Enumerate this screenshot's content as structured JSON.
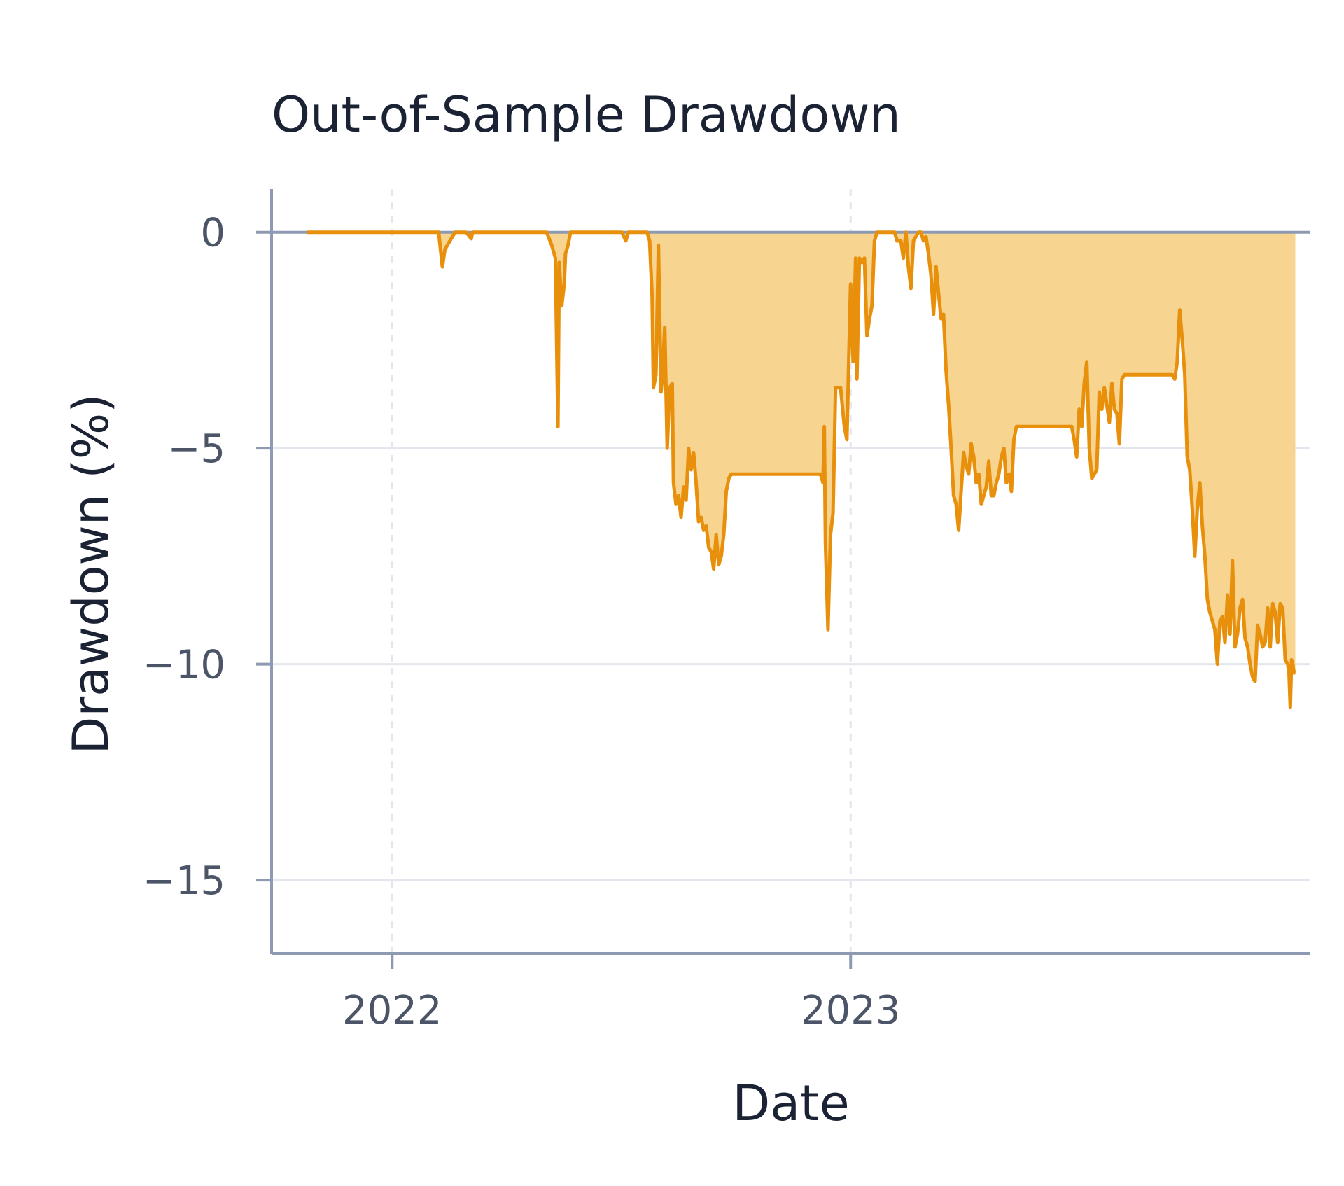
{
  "chart_data": {
    "type": "area",
    "title": "Out-of-Sample Drawdown",
    "xlabel": "Date",
    "ylabel": "Drawdown (%)",
    "xlim": [
      "2021-09-27",
      "2024-01-02"
    ],
    "ylim": [
      -16.7,
      1.0
    ],
    "x_ticks": [
      {
        "date": "2022-01-01",
        "label": "2022"
      },
      {
        "date": "2023-01-01",
        "label": "2023"
      }
    ],
    "y_ticks": [
      {
        "value": 0,
        "label": "0"
      },
      {
        "value": -5,
        "label": "−5"
      },
      {
        "value": -10,
        "label": "−10"
      },
      {
        "value": -15,
        "label": "−15"
      }
    ],
    "grid": {
      "x": "dashed",
      "y": "solid"
    },
    "colors": {
      "line": "#e8900c",
      "fill": "#f7d48f",
      "axis": "#8e9ab2",
      "grid": "#e3e6ec",
      "zero_line": "#8e9ab2"
    },
    "series": [
      {
        "x": [
          "2021-10-25",
          "2022-02-07",
          "2022-02-10",
          "2022-02-12",
          "2022-02-16",
          "2022-02-20",
          "2022-02-22",
          "2022-03-01",
          "2022-03-05",
          "2022-03-06",
          "2022-05-04",
          "2022-05-08",
          "2022-05-11",
          "2022-05-13",
          "2022-05-14",
          "2022-05-16",
          "2022-05-18",
          "2022-05-19",
          "2022-05-21",
          "2022-05-23",
          "2022-05-24",
          "2022-07-03",
          "2022-07-06",
          "2022-07-08",
          "2022-07-10",
          "2022-07-23",
          "2022-07-25",
          "2022-07-27",
          "2022-07-28",
          "2022-07-30",
          "2022-08-01",
          "2022-08-03",
          "2022-08-04",
          "2022-08-06",
          "2022-08-08",
          "2022-08-10",
          "2022-08-12",
          "2022-08-13",
          "2022-08-15",
          "2022-08-17",
          "2022-08-19",
          "2022-08-21",
          "2022-08-23",
          "2022-08-25",
          "2022-08-27",
          "2022-08-29",
          "2022-08-31",
          "2022-09-02",
          "2022-09-04",
          "2022-09-06",
          "2022-09-08",
          "2022-09-10",
          "2022-09-12",
          "2022-09-14",
          "2022-09-16",
          "2022-09-18",
          "2022-09-20",
          "2022-09-22",
          "2022-09-24",
          "2022-09-26",
          "2022-09-28",
          "2022-09-30",
          "2022-10-03",
          "2022-10-06",
          "2022-10-10",
          "2022-12-08",
          "2022-12-10",
          "2022-12-11",
          "2022-12-12",
          "2022-12-14",
          "2022-12-16",
          "2022-12-18",
          "2022-12-20",
          "2022-12-21",
          "2022-12-24",
          "2022-12-27",
          "2022-12-29",
          "2023-01-01",
          "2023-01-03",
          "2023-01-05",
          "2023-01-06",
          "2023-01-08",
          "2023-01-10",
          "2023-01-12",
          "2023-01-14",
          "2023-01-16",
          "2023-01-18",
          "2023-01-20",
          "2023-01-22",
          "2023-01-24",
          "2023-01-26",
          "2023-01-28",
          "2023-02-05",
          "2023-02-07",
          "2023-02-10",
          "2023-02-12",
          "2023-02-14",
          "2023-02-16",
          "2023-02-18",
          "2023-02-20",
          "2023-02-24",
          "2023-02-26",
          "2023-02-28",
          "2023-03-02",
          "2023-03-04",
          "2023-03-06",
          "2023-03-08",
          "2023-03-10",
          "2023-03-12",
          "2023-03-14",
          "2023-03-16",
          "2023-03-18",
          "2023-03-20",
          "2023-03-22",
          "2023-03-24",
          "2023-03-26",
          "2023-03-28",
          "2023-03-30",
          "2023-04-01",
          "2023-04-03",
          "2023-04-05",
          "2023-04-07",
          "2023-04-09",
          "2023-04-11",
          "2023-04-13",
          "2023-04-15",
          "2023-04-17",
          "2023-04-19",
          "2023-04-21",
          "2023-04-23",
          "2023-04-25",
          "2023-04-27",
          "2023-04-29",
          "2023-05-01",
          "2023-05-03",
          "2023-05-05",
          "2023-05-07",
          "2023-05-09",
          "2023-05-11",
          "2023-05-13",
          "2023-05-15",
          "2023-05-17",
          "2023-05-19",
          "2023-05-21",
          "2023-05-23",
          "2023-05-25",
          "2023-05-27",
          "2023-05-29",
          "2023-05-31",
          "2023-06-02",
          "2023-06-04",
          "2023-06-06",
          "2023-06-08",
          "2023-06-10",
          "2023-06-12",
          "2023-06-14",
          "2023-06-16",
          "2023-06-18",
          "2023-06-20",
          "2023-06-22",
          "2023-06-24",
          "2023-06-26",
          "2023-06-28",
          "2023-06-30",
          "2023-07-02",
          "2023-07-04",
          "2023-07-06",
          "2023-07-08",
          "2023-07-10",
          "2023-07-12",
          "2023-07-14",
          "2023-07-16",
          "2023-07-18",
          "2023-07-20",
          "2023-07-22",
          "2023-07-24",
          "2023-07-26",
          "2023-07-28",
          "2023-07-30",
          "2023-08-01",
          "2023-08-03",
          "2023-08-05",
          "2023-08-07",
          "2023-08-09",
          "2023-08-11",
          "2023-08-13",
          "2023-08-15",
          "2023-08-17",
          "2023-08-19",
          "2023-08-21",
          "2023-08-23",
          "2023-08-25",
          "2023-08-27",
          "2023-08-29",
          "2023-08-31",
          "2023-09-02",
          "2023-09-04",
          "2023-09-06",
          "2023-09-08",
          "2023-09-10",
          "2023-09-12",
          "2023-09-14",
          "2023-09-16",
          "2023-09-18",
          "2023-09-20",
          "2023-09-22",
          "2023-09-24",
          "2023-09-26",
          "2023-09-28",
          "2023-09-30",
          "2023-10-02",
          "2023-10-04",
          "2023-10-06",
          "2023-10-08",
          "2023-10-10",
          "2023-10-12",
          "2023-10-14",
          "2023-10-16",
          "2023-10-18",
          "2023-10-20",
          "2023-10-22",
          "2023-10-24",
          "2023-10-26",
          "2023-10-28",
          "2023-10-30",
          "2023-11-01",
          "2023-11-03",
          "2023-11-05",
          "2023-11-07",
          "2023-11-09",
          "2023-11-11",
          "2023-11-13",
          "2023-11-15",
          "2023-11-17",
          "2023-11-19",
          "2023-11-21",
          "2023-11-23",
          "2023-11-25",
          "2023-11-27",
          "2023-11-29",
          "2023-12-01",
          "2023-12-03",
          "2023-12-05",
          "2023-12-07",
          "2023-12-09",
          "2023-12-11",
          "2023-12-13",
          "2023-12-15",
          "2023-12-16",
          "2023-12-17",
          "2023-12-18",
          "2023-12-19",
          "2023-12-20",
          "2023-12-21"
        ],
        "y": [
          0,
          0,
          -0.8,
          -0.4,
          -0.2,
          0,
          0,
          0,
          -0.15,
          0,
          0,
          -0.3,
          -0.6,
          -4.5,
          -0.7,
          -1.7,
          -1.2,
          -0.5,
          -0.3,
          0,
          0,
          0,
          -0.2,
          0,
          0,
          0,
          -0.2,
          -1.5,
          -3.6,
          -3.3,
          -0.3,
          -3.7,
          -3.4,
          -2.2,
          -5.0,
          -3.6,
          -3.5,
          -5.8,
          -6.3,
          -6.1,
          -6.6,
          -5.9,
          -6.2,
          -5.0,
          -5.5,
          -5.1,
          -5.8,
          -6.7,
          -6.6,
          -6.9,
          -6.8,
          -7.3,
          -7.4,
          -7.8,
          -7.0,
          -7.7,
          -7.5,
          -7.0,
          -6.0,
          -5.7,
          -5.6,
          -5.6,
          -5.6,
          -5.6,
          -5.6,
          -5.6,
          -5.8,
          -4.5,
          -7.2,
          -9.2,
          -7.0,
          -6.5,
          -3.6,
          -3.6,
          -3.6,
          -4.5,
          -4.8,
          -1.2,
          -3.0,
          -0.6,
          -3.4,
          -0.6,
          -0.7,
          -0.6,
          -2.4,
          -2.0,
          -1.7,
          -0.2,
          0,
          0,
          0,
          0,
          0,
          -0.2,
          -0.2,
          -0.6,
          0,
          -0.8,
          -1.3,
          -0.2,
          0,
          0,
          -0.2,
          -0.1,
          -0.5,
          -1.0,
          -1.9,
          -0.8,
          -1.4,
          -2.0,
          -1.9,
          -3.2,
          -4.0,
          -5.0,
          -6.1,
          -6.3,
          -6.9,
          -6.0,
          -5.1,
          -5.4,
          -5.6,
          -4.9,
          -5.2,
          -5.8,
          -5.6,
          -6.3,
          -6.1,
          -5.9,
          -5.3,
          -6.1,
          -6.1,
          -5.8,
          -5.6,
          -5.2,
          -5.0,
          -5.8,
          -5.6,
          -6.0,
          -4.8,
          -4.5,
          -4.5,
          -4.5,
          -4.5,
          -4.5,
          -4.5,
          -4.5,
          -4.5,
          -4.5,
          -4.5,
          -4.5,
          -4.5,
          -4.5,
          -4.5,
          -4.5,
          -4.5,
          -4.5,
          -4.5,
          -4.5,
          -4.5,
          -4.5,
          -4.5,
          -4.5,
          -4.8,
          -5.2,
          -4.1,
          -4.5,
          -3.5,
          -3.0,
          -5.0,
          -5.7,
          -5.6,
          -5.5,
          -3.7,
          -4.1,
          -3.6,
          -4.0,
          -4.4,
          -3.5,
          -4.1,
          -4.2,
          -4.9,
          -3.4,
          -3.3,
          -3.3,
          -3.3,
          -3.3,
          -3.3,
          -3.3,
          -3.3,
          -3.3,
          -3.3,
          -3.3,
          -3.3,
          -3.3,
          -3.3,
          -3.3,
          -3.3,
          -3.3,
          -3.3,
          -3.3,
          -3.3,
          -3.3,
          -3.4,
          -3.0,
          -1.8,
          -2.5,
          -3.3,
          -5.2,
          -5.5,
          -6.4,
          -7.5,
          -6.4,
          -5.8,
          -6.8,
          -7.5,
          -8.5,
          -8.8,
          -9.0,
          -9.2,
          -10.0,
          -9.0,
          -8.9,
          -9.5,
          -8.4,
          -9.3,
          -7.6,
          -9.6,
          -9.3,
          -8.7,
          -8.5,
          -9.4,
          -9.6,
          -10.0,
          -10.3,
          -10.4,
          -9.1,
          -9.3,
          -9.6,
          -9.5,
          -8.7,
          -9.6,
          -8.6,
          -8.8,
          -9.5,
          -8.6,
          -8.7,
          -9.9,
          -10.0,
          -10.2,
          -11.0,
          -9.9,
          -10.0,
          -10.2,
          -10.2
        ]
      }
    ]
  }
}
